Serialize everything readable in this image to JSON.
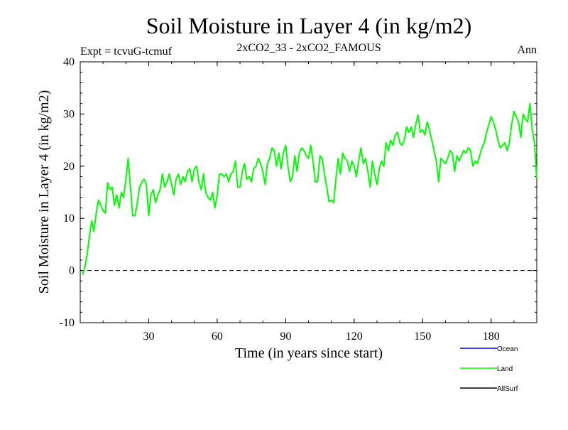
{
  "chart_data": {
    "type": "line",
    "title": "Soil Moisture in Layer 4 (in kg/m2)",
    "subtitle_left": "Expt = tcvuG-tcmuf",
    "subtitle_center": "2xCO2_33 - 2xCO2_FAMOUS",
    "subtitle_right": "Ann",
    "xlabel": "Time (in years since start)",
    "ylabel": "Soil Moisture in Layer 4 (in kg/m2)",
    "xlim": [
      0,
      200
    ],
    "ylim": [
      -10,
      40
    ],
    "xticks": [
      30,
      60,
      90,
      120,
      150,
      180
    ],
    "yticks": [
      -10,
      0,
      10,
      20,
      30,
      40
    ],
    "zero_line": 0,
    "legend_placement": "bottom-right",
    "series": [
      {
        "name": "Ocean",
        "color": "#0000ff",
        "values": []
      },
      {
        "name": "Land",
        "color": "#00ff00",
        "x": [
          1,
          2,
          3,
          4,
          5,
          6,
          7,
          8,
          9,
          10,
          11,
          12,
          13,
          14,
          15,
          16,
          17,
          18,
          19,
          20,
          21,
          22,
          23,
          24,
          25,
          26,
          27,
          28,
          29,
          30,
          31,
          32,
          33,
          34,
          35,
          36,
          37,
          38,
          39,
          40,
          41,
          42,
          43,
          44,
          45,
          46,
          47,
          48,
          49,
          50,
          51,
          52,
          53,
          54,
          55,
          56,
          57,
          58,
          59,
          60,
          61,
          62,
          63,
          64,
          65,
          66,
          67,
          68,
          69,
          70,
          71,
          72,
          73,
          74,
          75,
          76,
          77,
          78,
          79,
          80,
          81,
          82,
          83,
          84,
          85,
          86,
          87,
          88,
          89,
          90,
          91,
          92,
          93,
          94,
          95,
          96,
          97,
          98,
          99,
          100,
          101,
          102,
          103,
          104,
          105,
          106,
          107,
          108,
          109,
          110,
          111,
          112,
          113,
          114,
          115,
          116,
          117,
          118,
          119,
          120,
          121,
          122,
          123,
          124,
          125,
          126,
          127,
          128,
          129,
          130,
          131,
          132,
          133,
          134,
          135,
          136,
          137,
          138,
          139,
          140,
          141,
          142,
          143,
          144,
          145,
          146,
          147,
          148,
          149,
          150,
          151,
          152,
          153,
          154,
          155,
          156,
          157,
          158,
          159,
          160,
          161,
          162,
          163,
          164,
          165,
          166,
          167,
          168,
          169,
          170,
          171,
          172,
          173,
          174,
          175,
          176,
          177,
          178,
          179,
          180,
          181,
          182,
          183,
          184,
          185,
          186,
          187,
          188,
          189,
          190,
          191,
          192,
          193,
          194,
          195,
          196,
          197,
          198,
          199,
          200
        ],
        "values": [
          -0.8,
          0.5,
          3,
          6.5,
          9.5,
          7.5,
          11,
          13.5,
          12.5,
          11.5,
          11,
          16.8,
          15.5,
          16,
          12.5,
          14.5,
          12,
          15,
          14,
          17.5,
          21.5,
          16,
          10.5,
          10.5,
          13,
          16,
          17,
          17.5,
          16.5,
          10.5,
          14.5,
          15.5,
          13,
          14.5,
          15.5,
          18.5,
          16,
          17,
          18.5,
          16.5,
          14.5,
          17.5,
          18.5,
          16.5,
          18,
          17,
          19,
          19.5,
          17,
          19.5,
          20,
          17,
          15.5,
          18.5,
          15,
          14,
          13.5,
          15,
          12,
          14.5,
          18.5,
          18.5,
          18,
          18.5,
          17,
          18.5,
          19,
          21,
          16,
          16,
          19,
          20.5,
          17.5,
          18,
          17,
          19.5,
          20,
          21.5,
          20.5,
          19,
          16.5,
          20.5,
          21.5,
          23.5,
          23,
          20,
          22.5,
          19.5,
          22.5,
          24,
          20,
          17,
          18,
          22,
          19,
          22.5,
          23.5,
          23,
          22,
          21.5,
          24,
          21,
          17,
          17,
          22,
          21.5,
          18.5,
          16,
          13.2,
          13.5,
          13,
          17.5,
          21.5,
          18.5,
          22.5,
          21.5,
          21,
          19,
          21,
          20,
          18,
          21,
          23.5,
          20.5,
          21.5,
          19,
          16,
          21,
          18.5,
          16.5,
          19.5,
          21,
          20,
          24.5,
          23,
          25,
          24,
          26,
          26.5,
          24.5,
          24,
          25,
          27.5,
          26.5,
          27.5,
          25.5,
          28,
          29.8,
          26.5,
          27,
          26,
          28.5,
          27,
          25,
          23,
          21,
          17,
          21.5,
          21,
          20.5,
          21.5,
          23,
          22.5,
          19,
          22,
          21,
          22,
          23,
          22.5,
          23.5,
          23,
          20,
          21,
          20.5,
          22,
          23.5,
          24.5,
          26.5,
          28,
          29.5,
          28.5,
          27,
          25,
          23.5,
          24,
          24.5,
          23,
          24.5,
          28,
          30.5,
          29.5,
          28.5,
          25.5,
          30,
          29,
          28.5,
          32,
          27,
          24.5,
          17.5
        ]
      },
      {
        "name": "AllSurf",
        "color": "#000000",
        "values": []
      }
    ],
    "annotations": []
  }
}
